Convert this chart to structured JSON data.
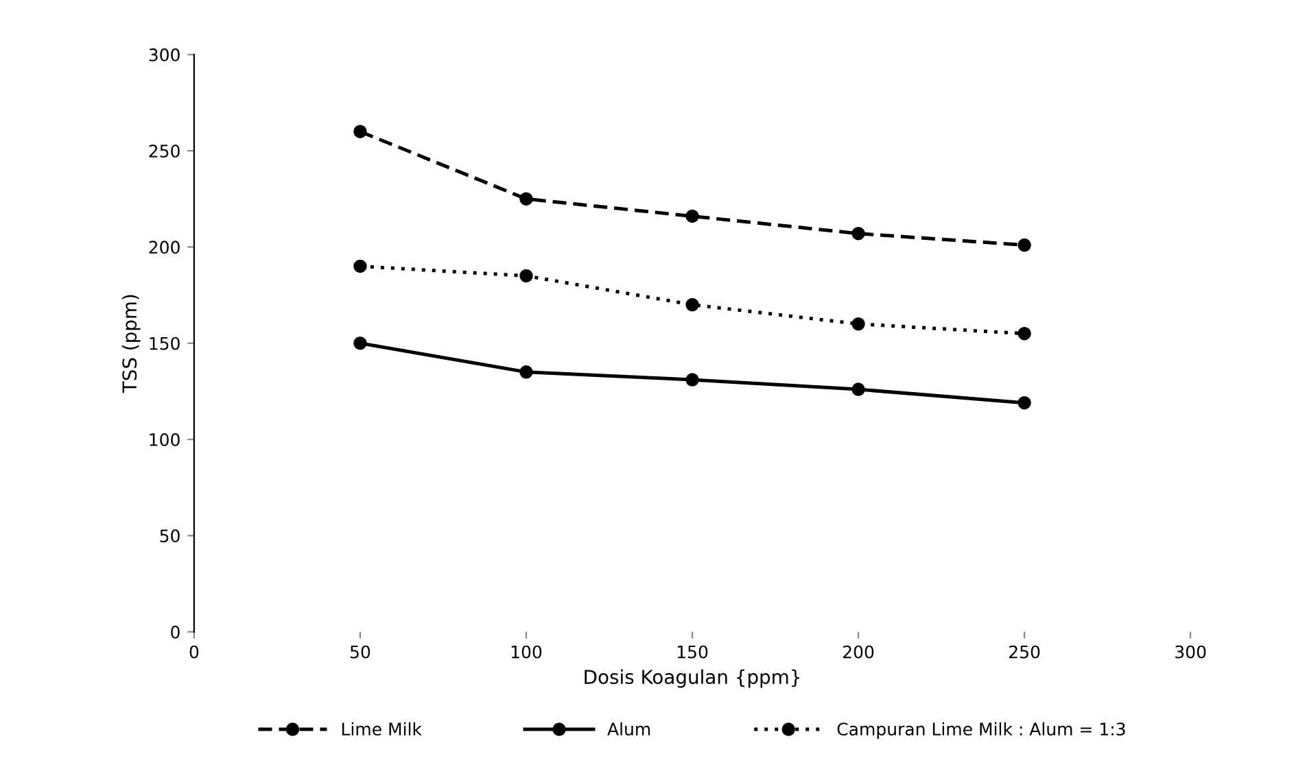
{
  "chart_data": {
    "type": "line",
    "xlabel": "Dosis Koagulan {ppm}",
    "ylabel": "TSS (ppm)",
    "x": [
      50,
      100,
      150,
      200,
      250
    ],
    "series": [
      {
        "name": "Lime Milk",
        "color": "#000000",
        "line_style": "dashed",
        "values": [
          260,
          225,
          216,
          207,
          201
        ]
      },
      {
        "name": "Alum",
        "color": "#000000",
        "line_style": "solid",
        "values": [
          150,
          135,
          131,
          126,
          119
        ]
      },
      {
        "name": "Campuran Lime Milk : Alum = 1:3",
        "color": "#000000",
        "line_style": "dotted",
        "values": [
          190,
          185,
          170,
          160,
          155
        ]
      }
    ],
    "xlim": [
      0,
      300
    ],
    "xticks": [
      0,
      50,
      100,
      150,
      200,
      250,
      300
    ],
    "ylim": [
      0,
      300
    ],
    "yticks": [
      0,
      50,
      100,
      150,
      200,
      250,
      300
    ],
    "grid": false,
    "legend": "bottom",
    "marker": "circle"
  }
}
